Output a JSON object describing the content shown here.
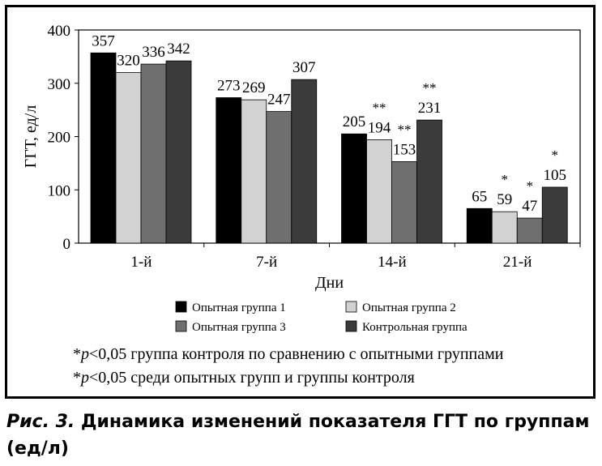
{
  "chart_data": {
    "type": "bar",
    "categories": [
      "1-й",
      "7-й",
      "14-й",
      "21-й"
    ],
    "series": [
      {
        "name": "Опытная группа 1",
        "color": "#000000",
        "values": [
          357,
          273,
          205,
          65
        ]
      },
      {
        "name": "Опытная группа  2",
        "color": "#d2d2d2",
        "values": [
          320,
          269,
          194,
          59
        ]
      },
      {
        "name": "Опытная группа 3",
        "color": "#6f6f6f",
        "values": [
          336,
          247,
          153,
          47
        ]
      },
      {
        "name": "Контрольная группа",
        "color": "#3b3b3b",
        "values": [
          342,
          307,
          231,
          105
        ]
      }
    ],
    "significance": [
      [
        "",
        "",
        "",
        ""
      ],
      [
        "",
        "",
        "**",
        "*"
      ],
      [
        "",
        "",
        "**",
        "*"
      ],
      [
        "",
        "",
        "**",
        "*"
      ]
    ],
    "xlabel": "Дни",
    "ylabel": "ГГТ, ед/л",
    "ylim": [
      0,
      400
    ],
    "yticks": [
      0,
      100,
      200,
      300,
      400
    ],
    "grid": false,
    "legend_position": "bottom"
  },
  "notes": [
    {
      "symbol": "*",
      "p": "p",
      "rest": "<0,05 группа контроля по сравнению с опытными группами"
    },
    {
      "symbol": "*",
      "p": "p",
      "rest": "<0,05 среди опытных групп и группы контроля"
    }
  ],
  "caption": {
    "prefix": "Рис. 3.",
    "text": " Динамика изменений показателя ГГТ по группам (ед/л)"
  }
}
